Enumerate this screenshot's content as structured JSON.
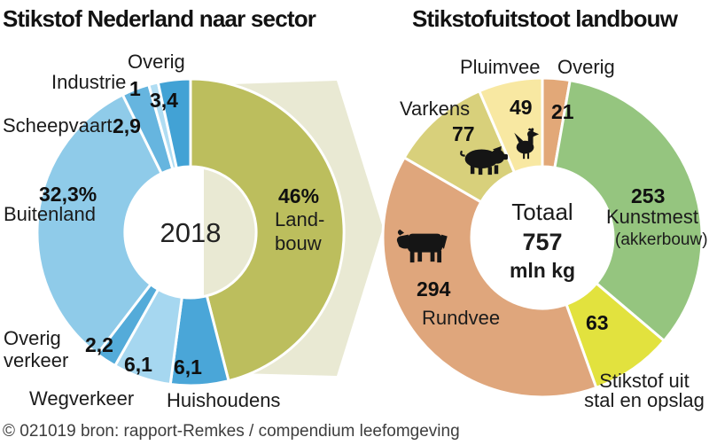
{
  "titles": {
    "left": "Stikstof Nederland naar sector",
    "right": "Stikstofuitstoot landbouw"
  },
  "footer": "© 021019 bron: rapport-Remkes / compendium leefomgeving",
  "chart_data": [
    {
      "type": "pie",
      "donut": true,
      "title": "Stikstof Nederland naar sector",
      "center_label": "2018",
      "unit": "percent",
      "arrow_color": "#e9e9d3",
      "arrow_meaning": "Landbouw segment flows into right-hand chart",
      "segments": [
        {
          "label": "Landbouw",
          "label_lines": [
            "Land-",
            "bouw"
          ],
          "value": 46,
          "display": "46%",
          "color": "#bcbe5d"
        },
        {
          "label": "Huishoudens",
          "value": 6.1,
          "display": "6,1",
          "color": "#4aa6d8"
        },
        {
          "label": "Wegverkeer",
          "value": 6.1,
          "display": "6,1",
          "color": "#a6d7f0"
        },
        {
          "label": "Overig verkeer",
          "label_lines": [
            "Overig",
            "verkeer"
          ],
          "value": 2.2,
          "display": "2,2",
          "color": "#54abd9"
        },
        {
          "label": "Buitenland",
          "value": 32.3,
          "display": "32,3%",
          "color": "#8fcbe9"
        },
        {
          "label": "Scheepvaart",
          "value": 2.9,
          "display": "2,9",
          "color": "#66b5df"
        },
        {
          "label": "Industrie",
          "value": 1,
          "display": "1",
          "color": "#b0ddf3"
        },
        {
          "label": "Overig",
          "value": 3.4,
          "display": "3,4",
          "color": "#42a2d5"
        }
      ]
    },
    {
      "type": "pie",
      "donut": true,
      "title": "Stikstofuitstoot landbouw",
      "total": 757,
      "unit": "mln kg",
      "center": {
        "title": "Totaal",
        "value": "757",
        "unit": "mln kg"
      },
      "segments": [
        {
          "label": "Overig",
          "value": 21,
          "display": "21",
          "color": "#e2a878"
        },
        {
          "label": "Kunstmest",
          "sublabel": "(akkerbouw)",
          "value": 253,
          "display": "253",
          "color": "#95c57f"
        },
        {
          "label": "Stikstof uit stal en opslag",
          "label_lines": [
            "Stikstof uit",
            "stal en opslag"
          ],
          "value": 63,
          "display": "63",
          "color": "#e2e23e"
        },
        {
          "label": "Rundvee",
          "value": 294,
          "display": "294",
          "color": "#dfa67c",
          "icon": "cow-icon"
        },
        {
          "label": "Varkens",
          "value": 77,
          "display": "77",
          "color": "#d8d07b",
          "icon": "pig-icon"
        },
        {
          "label": "Pluimvee",
          "value": 49,
          "display": "49",
          "color": "#f8e8a2",
          "icon": "chicken-icon"
        }
      ]
    }
  ]
}
